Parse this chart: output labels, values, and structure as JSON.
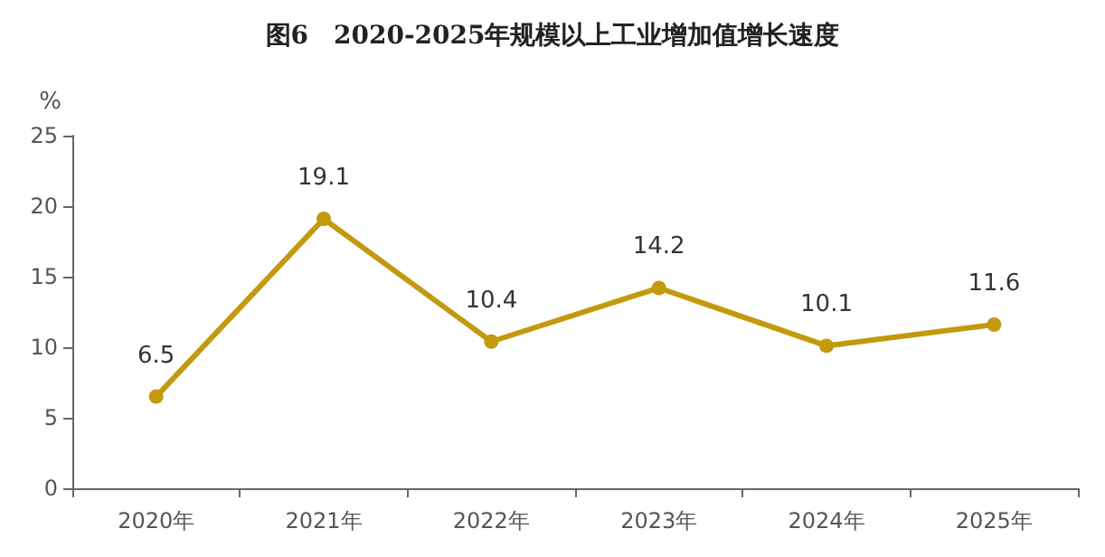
{
  "chart_data": {
    "type": "line",
    "title": "图6　2020-2025年规模以上工业增加值增长速度",
    "ylabel": "%",
    "categories": [
      "2020年",
      "2021年",
      "2022年",
      "2023年",
      "2024年",
      "2025年"
    ],
    "series": [
      {
        "color": "#c39a0e",
        "values": [
          6.5,
          19.1,
          10.4,
          14.2,
          10.1,
          11.6
        ]
      }
    ],
    "ylim": [
      0,
      25
    ],
    "yticks": [
      0,
      5,
      10,
      15,
      20,
      25
    ],
    "grid": false,
    "marker": "circle",
    "line_style": "solid",
    "data_labels": true
  }
}
